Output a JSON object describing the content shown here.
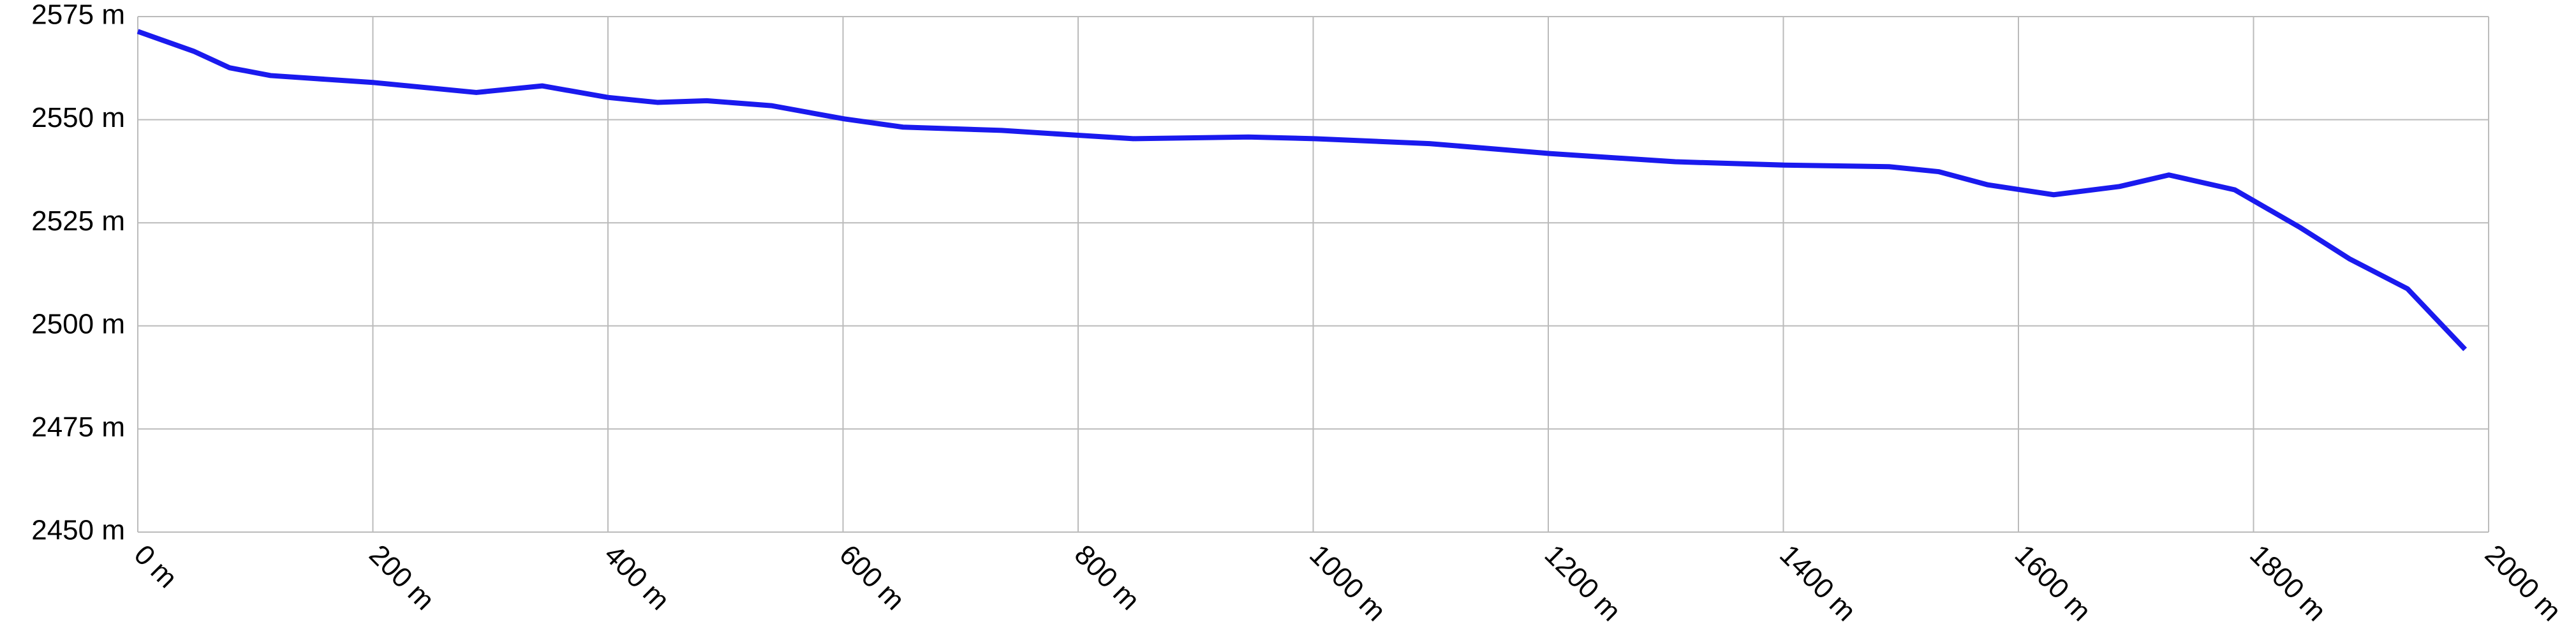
{
  "chart_data": {
    "type": "line",
    "x": [
      0,
      47.5,
      78,
      113,
      201,
      288,
      344,
      400,
      442,
      484,
      539,
      601,
      651,
      735,
      801,
      847,
      945,
      1001,
      1099,
      1201,
      1308,
      1400,
      1490,
      1532,
      1574,
      1630,
      1686,
      1728,
      1784,
      1840,
      1882,
      1931,
      1980
    ],
    "series": [
      {
        "color": "#1a1aee",
        "values": [
          2571.4,
          2566.6,
          2562.6,
          2560.7,
          2559,
          2556.6,
          2558.2,
          2555.4,
          2554.2,
          2554.6,
          2553.4,
          2550.2,
          2548.2,
          2547.4,
          2546.2,
          2545.4,
          2545.8,
          2545.4,
          2544.2,
          2541.8,
          2539.8,
          2539,
          2538.6,
          2537.4,
          2534.2,
          2531.8,
          2533.8,
          2536.6,
          2533,
          2523.8,
          2516.2,
          2509,
          2494.3
        ]
      }
    ],
    "xlim": [
      0,
      2000
    ],
    "ylim": [
      2450,
      2575
    ],
    "xticks": [
      {
        "value": 0,
        "label": "0 m"
      },
      {
        "value": 200,
        "label": "200 m"
      },
      {
        "value": 400,
        "label": "400 m"
      },
      {
        "value": 600,
        "label": "600 m"
      },
      {
        "value": 800,
        "label": "800 m"
      },
      {
        "value": 1000,
        "label": "1000 m"
      },
      {
        "value": 1200,
        "label": "1200 m"
      },
      {
        "value": 1400,
        "label": "1400 m"
      },
      {
        "value": 1600,
        "label": "1600 m"
      },
      {
        "value": 1800,
        "label": "1800 m"
      },
      {
        "value": 2000,
        "label": "2000 m"
      }
    ],
    "yticks": [
      {
        "value": 2450,
        "label": "2450 m"
      },
      {
        "value": 2475,
        "label": "2475 m"
      },
      {
        "value": 2500,
        "label": "2500 m"
      },
      {
        "value": 2525,
        "label": "2525 m"
      },
      {
        "value": 2550,
        "label": "2550 m"
      },
      {
        "value": 2575,
        "label": "2575 m"
      }
    ],
    "grid": true
  }
}
